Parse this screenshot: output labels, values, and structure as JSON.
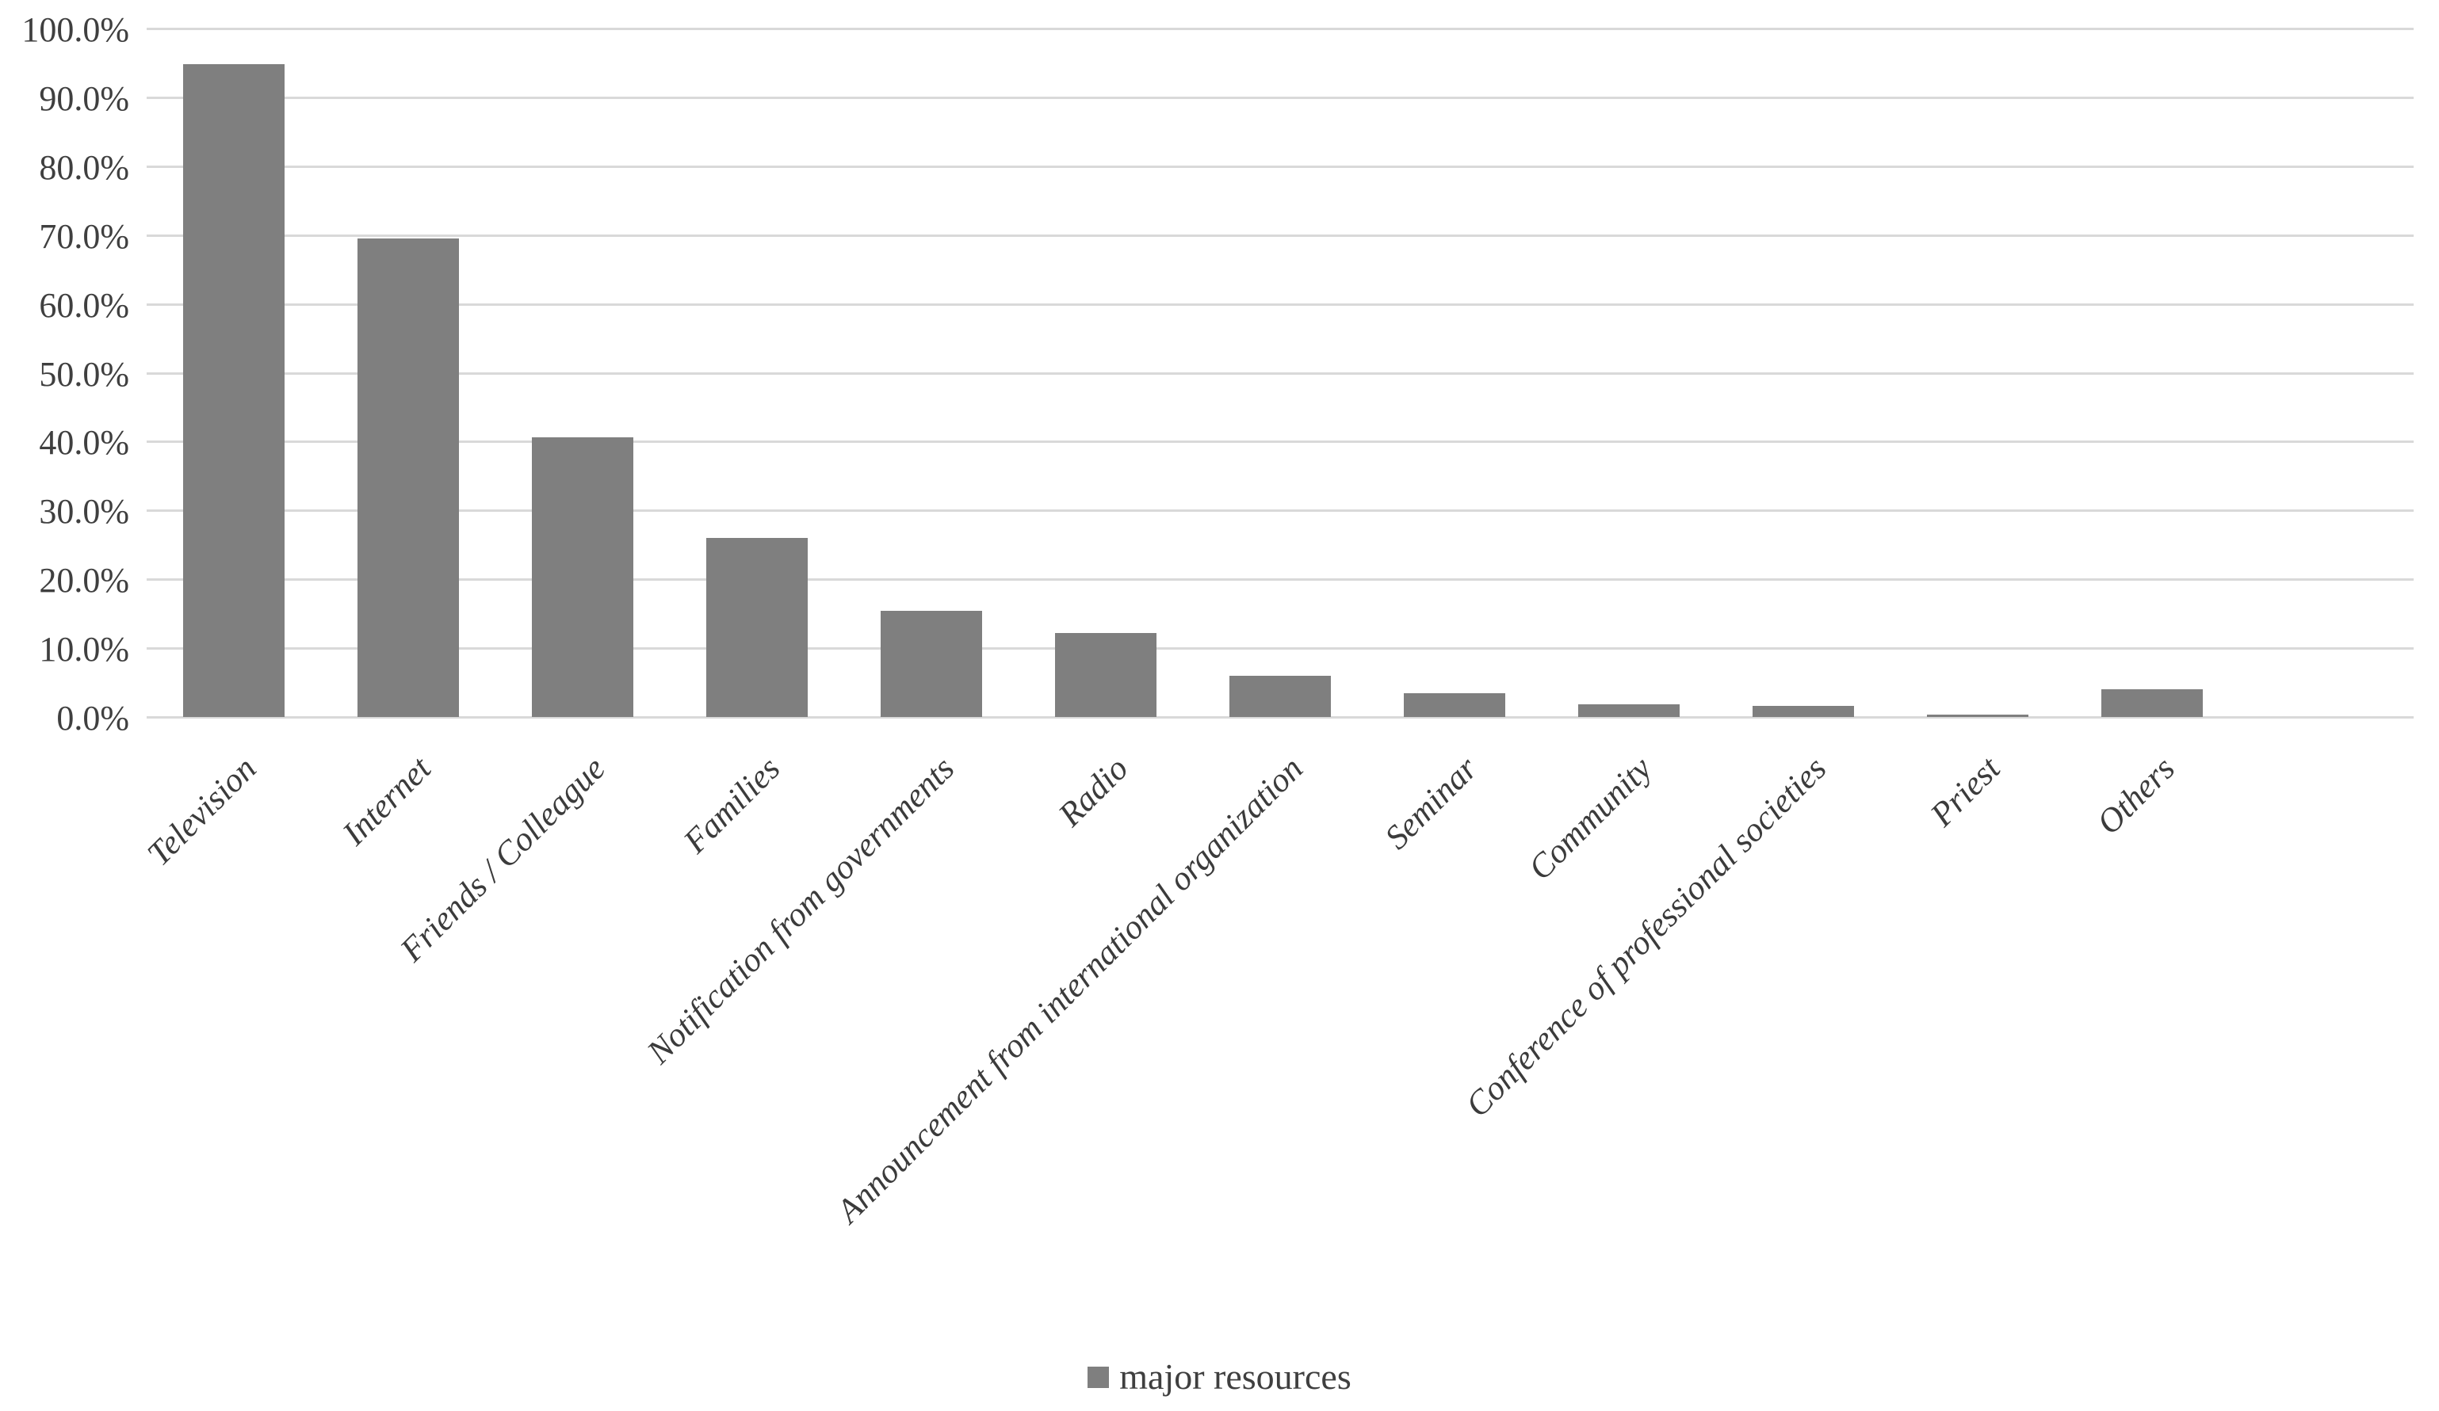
{
  "chart_data": {
    "type": "bar",
    "title": "",
    "xlabel": "",
    "ylabel": "",
    "categories": [
      "Television",
      "Internet",
      "Friends / Colleague",
      "Families",
      "Notification from governments",
      "Radio",
      "Announcement from international organization",
      "Seminar",
      "Community",
      "Conference of professional societies",
      "Priest",
      "Others"
    ],
    "values": [
      94.8,
      69.5,
      40.6,
      26.0,
      15.4,
      12.2,
      6.0,
      3.4,
      1.8,
      1.6,
      0.4,
      4.0
    ],
    "series": [
      {
        "name": "major resources",
        "values": [
          94.8,
          69.5,
          40.6,
          26.0,
          15.4,
          12.2,
          6.0,
          3.4,
          1.8,
          1.6,
          0.4,
          4.0
        ]
      }
    ],
    "ytick_labels": [
      "100.0%",
      "90.0%",
      "80.0%",
      "70.0%",
      "60.0%",
      "50.0%",
      "40.0%",
      "30.0%",
      "20.0%",
      "10.0%",
      "0.0%"
    ],
    "ylim": [
      0,
      100
    ],
    "grid": true,
    "legend_position": "bottom-center",
    "bar_color": "#7f7f7f",
    "gridline_color": "#d9d9d9",
    "text_color": "#3f3f3f"
  },
  "legend": {
    "label": "major resources"
  }
}
